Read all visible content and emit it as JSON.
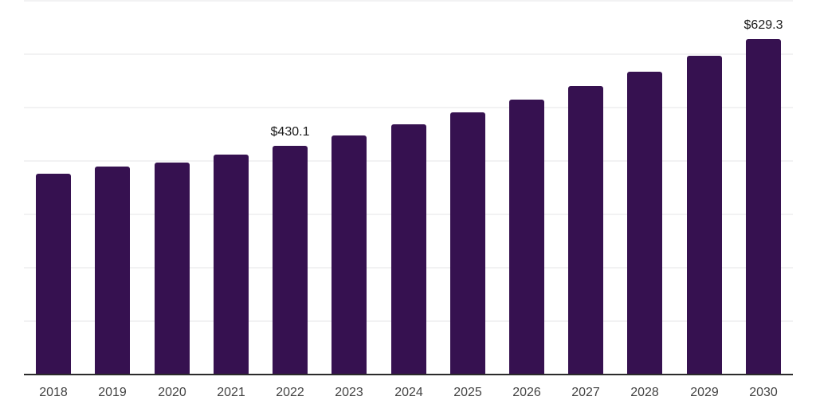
{
  "chart_data": {
    "type": "bar",
    "categories": [
      "2018",
      "2019",
      "2020",
      "2021",
      "2022",
      "2023",
      "2024",
      "2025",
      "2026",
      "2027",
      "2028",
      "2029",
      "2030"
    ],
    "values": [
      377.4,
      390.9,
      397.8,
      413.8,
      430.1,
      449.6,
      469.6,
      492.8,
      516.2,
      541.5,
      569.0,
      598.1,
      629.3
    ],
    "data_labels": [
      "",
      "",
      "",
      "",
      "$430.1",
      "",
      "",
      "",
      "",
      "",
      "",
      "",
      "$629.3"
    ],
    "title": "",
    "xlabel": "",
    "ylabel": "",
    "ylim": [
      0,
      700
    ],
    "gridline_step": 100,
    "grid": true,
    "legend_position": "none",
    "colors": {
      "bar": "#361150",
      "gridline": "#f2f2f3",
      "axis_line": "#2b2b2b",
      "x_label": "#444444",
      "data_label": "#1a1a1a",
      "background": "#ffffff"
    }
  }
}
